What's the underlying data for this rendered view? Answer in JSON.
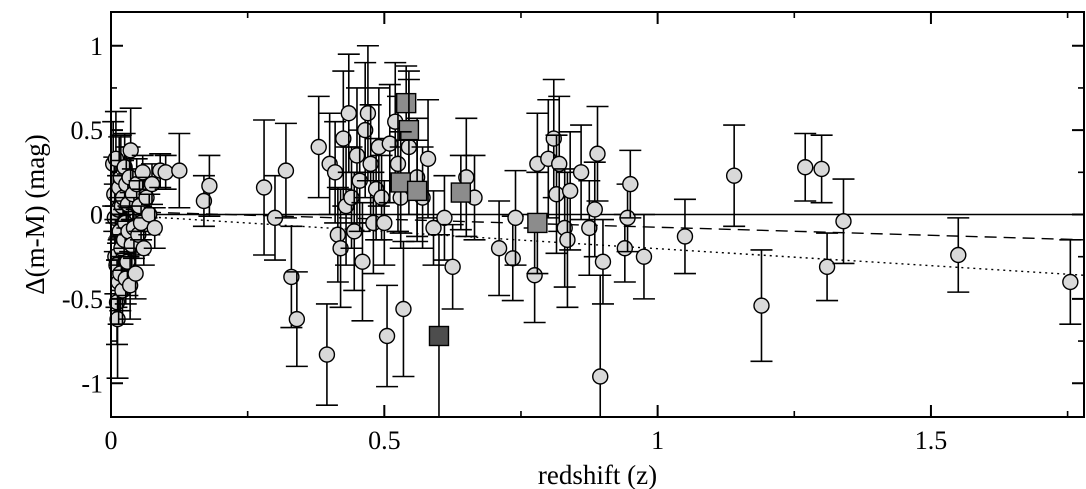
{
  "chart_data": {
    "type": "scatter",
    "xlabel": "redshift (z)",
    "ylabel": "Δ(m-M) (mag)",
    "xlim": [
      0,
      1.78
    ],
    "ylim": [
      -1.2,
      1.2
    ],
    "xticks": [
      0,
      0.5,
      1,
      1.5
    ],
    "xtick_labels": [
      "0",
      "0.5",
      "1",
      "1.5"
    ],
    "yticks": [
      -1,
      -0.5,
      0,
      0.5,
      1
    ],
    "ytick_labels": [
      "-1",
      "-0.5",
      "0",
      "0.5",
      "1"
    ],
    "grid": false,
    "colors": {
      "circle": "#d9d9d9",
      "square": "#8c8c8c",
      "square_dark": "#4d4d4d",
      "line": "#000000"
    },
    "reference_lines": [
      {
        "style": "solid",
        "x": [
          0,
          1.78
        ],
        "y": [
          0,
          0
        ]
      },
      {
        "style": "dashed",
        "x": [
          0,
          1.78
        ],
        "y": [
          0.02,
          -0.15
        ]
      },
      {
        "style": "dotted",
        "x": [
          0,
          1.78
        ],
        "y": [
          0.0,
          -0.36
        ]
      }
    ],
    "series": [
      {
        "marker": "circle",
        "points": [
          {
            "x": 0.004,
            "y": 0.3,
            "e": 0.25
          },
          {
            "x": 0.006,
            "y": 0.12,
            "e": 0.22
          },
          {
            "x": 0.007,
            "y": -0.02,
            "e": 0.2
          },
          {
            "x": 0.008,
            "y": -0.25,
            "e": 0.22
          },
          {
            "x": 0.009,
            "y": 0.33,
            "e": 0.28
          },
          {
            "x": 0.01,
            "y": -0.3,
            "e": 0.25
          },
          {
            "x": 0.011,
            "y": -0.52,
            "e": 0.25
          },
          {
            "x": 0.012,
            "y": -0.62,
            "e": 0.35
          },
          {
            "x": 0.013,
            "y": 0.03,
            "e": 0.2
          },
          {
            "x": 0.014,
            "y": -0.4,
            "e": 0.25
          },
          {
            "x": 0.015,
            "y": 0.16,
            "e": 0.3
          },
          {
            "x": 0.016,
            "y": -0.1,
            "e": 0.2
          },
          {
            "x": 0.017,
            "y": -0.35,
            "e": 0.22
          },
          {
            "x": 0.018,
            "y": 0.22,
            "e": 0.25
          },
          {
            "x": 0.019,
            "y": -0.2,
            "e": 0.25
          },
          {
            "x": 0.02,
            "y": 0.05,
            "e": 0.18
          },
          {
            "x": 0.021,
            "y": -0.45,
            "e": 0.2
          },
          {
            "x": 0.022,
            "y": 0.1,
            "e": 0.22
          },
          {
            "x": 0.024,
            "y": -0.15,
            "e": 0.18
          },
          {
            "x": 0.025,
            "y": 0.28,
            "e": 0.2
          },
          {
            "x": 0.026,
            "y": -0.05,
            "e": 0.15
          },
          {
            "x": 0.027,
            "y": -0.38,
            "e": 0.15
          },
          {
            "x": 0.028,
            "y": 0.18,
            "e": 0.22
          },
          {
            "x": 0.03,
            "y": -0.28,
            "e": 0.2
          },
          {
            "x": 0.031,
            "y": 0.06,
            "e": 0.18
          },
          {
            "x": 0.032,
            "y": -0.1,
            "e": 0.15
          },
          {
            "x": 0.034,
            "y": 0.22,
            "e": 0.18
          },
          {
            "x": 0.035,
            "y": -0.42,
            "e": 0.2
          },
          {
            "x": 0.036,
            "y": 0.38,
            "e": 0.25
          },
          {
            "x": 0.038,
            "y": -0.18,
            "e": 0.15
          },
          {
            "x": 0.04,
            "y": 0.12,
            "e": 0.15
          },
          {
            "x": 0.042,
            "y": -0.08,
            "e": 0.18
          },
          {
            "x": 0.045,
            "y": -0.35,
            "e": 0.15
          },
          {
            "x": 0.047,
            "y": 0.18,
            "e": 0.15
          },
          {
            "x": 0.05,
            "y": -0.12,
            "e": 0.12
          },
          {
            "x": 0.052,
            "y": 0.05,
            "e": 0.15
          },
          {
            "x": 0.055,
            "y": -0.05,
            "e": 0.1
          },
          {
            "x": 0.058,
            "y": 0.25,
            "e": 0.1
          },
          {
            "x": 0.06,
            "y": -0.2,
            "e": 0.1
          },
          {
            "x": 0.065,
            "y": 0.1,
            "e": 0.12
          },
          {
            "x": 0.07,
            "y": 0.0,
            "e": 0.12
          },
          {
            "x": 0.075,
            "y": 0.18,
            "e": 0.12
          },
          {
            "x": 0.08,
            "y": -0.08,
            "e": 0.12
          },
          {
            "x": 0.09,
            "y": 0.26,
            "e": 0.1
          },
          {
            "x": 0.1,
            "y": 0.25,
            "e": 0.1
          },
          {
            "x": 0.125,
            "y": 0.26,
            "e": 0.22
          },
          {
            "x": 0.17,
            "y": 0.08,
            "e": 0.15
          },
          {
            "x": 0.18,
            "y": 0.17,
            "e": 0.18
          },
          {
            "x": 0.28,
            "y": 0.16,
            "e": 0.4
          },
          {
            "x": 0.3,
            "y": -0.02,
            "e": 0.25
          },
          {
            "x": 0.32,
            "y": 0.26,
            "e": 0.28
          },
          {
            "x": 0.33,
            "y": -0.37,
            "e": 0.3
          },
          {
            "x": 0.34,
            "y": -0.62,
            "e": 0.28
          },
          {
            "x": 0.38,
            "y": 0.4,
            "e": 0.3
          },
          {
            "x": 0.395,
            "y": -0.83,
            "e": 0.3
          },
          {
            "x": 0.4,
            "y": 0.3,
            "e": 0.3
          },
          {
            "x": 0.41,
            "y": 0.25,
            "e": 0.3
          },
          {
            "x": 0.415,
            "y": -0.12,
            "e": 0.28
          },
          {
            "x": 0.42,
            "y": -0.2,
            "e": 0.35
          },
          {
            "x": 0.425,
            "y": 0.45,
            "e": 0.4
          },
          {
            "x": 0.43,
            "y": 0.05,
            "e": 0.35
          },
          {
            "x": 0.435,
            "y": 0.6,
            "e": 0.35
          },
          {
            "x": 0.44,
            "y": 0.1,
            "e": 0.3
          },
          {
            "x": 0.445,
            "y": -0.1,
            "e": 0.35
          },
          {
            "x": 0.45,
            "y": 0.35,
            "e": 0.4
          },
          {
            "x": 0.455,
            "y": 0.2,
            "e": 0.3
          },
          {
            "x": 0.46,
            "y": -0.28,
            "e": 0.35
          },
          {
            "x": 0.465,
            "y": 0.5,
            "e": 0.4
          },
          {
            "x": 0.47,
            "y": 0.6,
            "e": 0.4
          },
          {
            "x": 0.475,
            "y": 0.3,
            "e": 0.35
          },
          {
            "x": 0.48,
            "y": -0.05,
            "e": 0.3
          },
          {
            "x": 0.485,
            "y": 0.15,
            "e": 0.3
          },
          {
            "x": 0.49,
            "y": 0.4,
            "e": 0.35
          },
          {
            "x": 0.495,
            "y": 0.1,
            "e": 0.25
          },
          {
            "x": 0.5,
            "y": -0.05,
            "e": 0.25
          },
          {
            "x": 0.505,
            "y": -0.72,
            "e": 0.3
          },
          {
            "x": 0.51,
            "y": 0.42,
            "e": 0.35
          },
          {
            "x": 0.52,
            "y": 0.55,
            "e": 0.35
          },
          {
            "x": 0.525,
            "y": 0.3,
            "e": 0.4
          },
          {
            "x": 0.53,
            "y": 0.1,
            "e": 0.3
          },
          {
            "x": 0.535,
            "y": -0.56,
            "e": 0.4
          },
          {
            "x": 0.545,
            "y": 0.4,
            "e": 0.4
          },
          {
            "x": 0.56,
            "y": 0.22,
            "e": 0.35
          },
          {
            "x": 0.57,
            "y": 0.1,
            "e": 0.3
          },
          {
            "x": 0.58,
            "y": 0.33,
            "e": 0.35
          },
          {
            "x": 0.59,
            "y": -0.08,
            "e": 0.22
          },
          {
            "x": 0.61,
            "y": -0.02,
            "e": 0.25
          },
          {
            "x": 0.625,
            "y": -0.31,
            "e": 0.25
          },
          {
            "x": 0.65,
            "y": 0.22,
            "e": 0.35
          },
          {
            "x": 0.665,
            "y": 0.1,
            "e": 0.25
          },
          {
            "x": 0.71,
            "y": -0.2,
            "e": 0.28
          },
          {
            "x": 0.735,
            "y": -0.26,
            "e": 0.25
          },
          {
            "x": 0.74,
            "y": -0.02,
            "e": 0.28
          },
          {
            "x": 0.775,
            "y": -0.36,
            "e": 0.28
          },
          {
            "x": 0.78,
            "y": 0.3,
            "e": 0.3
          },
          {
            "x": 0.8,
            "y": 0.33,
            "e": 0.35
          },
          {
            "x": 0.81,
            "y": 0.45,
            "e": 0.35
          },
          {
            "x": 0.815,
            "y": 0.12,
            "e": 0.35
          },
          {
            "x": 0.82,
            "y": 0.3,
            "e": 0.4
          },
          {
            "x": 0.83,
            "y": -0.08,
            "e": 0.35
          },
          {
            "x": 0.835,
            "y": -0.15,
            "e": 0.4
          },
          {
            "x": 0.84,
            "y": 0.14,
            "e": 0.35
          },
          {
            "x": 0.86,
            "y": 0.25,
            "e": 0.28
          },
          {
            "x": 0.875,
            "y": -0.08,
            "e": 0.28
          },
          {
            "x": 0.885,
            "y": 0.03,
            "e": 0.28
          },
          {
            "x": 0.89,
            "y": 0.36,
            "e": 0.28
          },
          {
            "x": 0.895,
            "y": -0.96,
            "e": 0.6
          },
          {
            "x": 0.9,
            "y": -0.28,
            "e": 0.25
          },
          {
            "x": 0.94,
            "y": -0.2,
            "e": 0.2
          },
          {
            "x": 0.945,
            "y": -0.02,
            "e": 0.2
          },
          {
            "x": 0.95,
            "y": 0.18,
            "e": 0.2
          },
          {
            "x": 0.975,
            "y": -0.25,
            "e": 0.25
          },
          {
            "x": 1.05,
            "y": -0.13,
            "e": 0.22
          },
          {
            "x": 1.14,
            "y": 0.23,
            "e": 0.3
          },
          {
            "x": 1.19,
            "y": -0.54,
            "e": 0.33
          },
          {
            "x": 1.27,
            "y": 0.28,
            "e": 0.2
          },
          {
            "x": 1.3,
            "y": 0.27,
            "e": 0.2
          },
          {
            "x": 1.31,
            "y": -0.31,
            "e": 0.2
          },
          {
            "x": 1.34,
            "y": -0.04,
            "e": 0.25
          },
          {
            "x": 1.55,
            "y": -0.24,
            "e": 0.22
          },
          {
            "x": 1.755,
            "y": -0.4,
            "e": 0.25
          }
        ]
      },
      {
        "marker": "square",
        "points": [
          {
            "x": 0.54,
            "y": 0.66,
            "e": 0.22
          },
          {
            "x": 0.545,
            "y": 0.5,
            "e": 0.35
          },
          {
            "x": 0.53,
            "y": 0.19,
            "e": 0.3
          },
          {
            "x": 0.56,
            "y": 0.14,
            "e": 0.3
          },
          {
            "x": 0.64,
            "y": 0.13,
            "e": 0.22
          },
          {
            "x": 0.78,
            "y": -0.05,
            "e": 0.3
          }
        ]
      },
      {
        "marker": "square_dark",
        "points": [
          {
            "x": 0.6,
            "y": -0.72,
            "e": 0.6
          }
        ]
      }
    ]
  }
}
